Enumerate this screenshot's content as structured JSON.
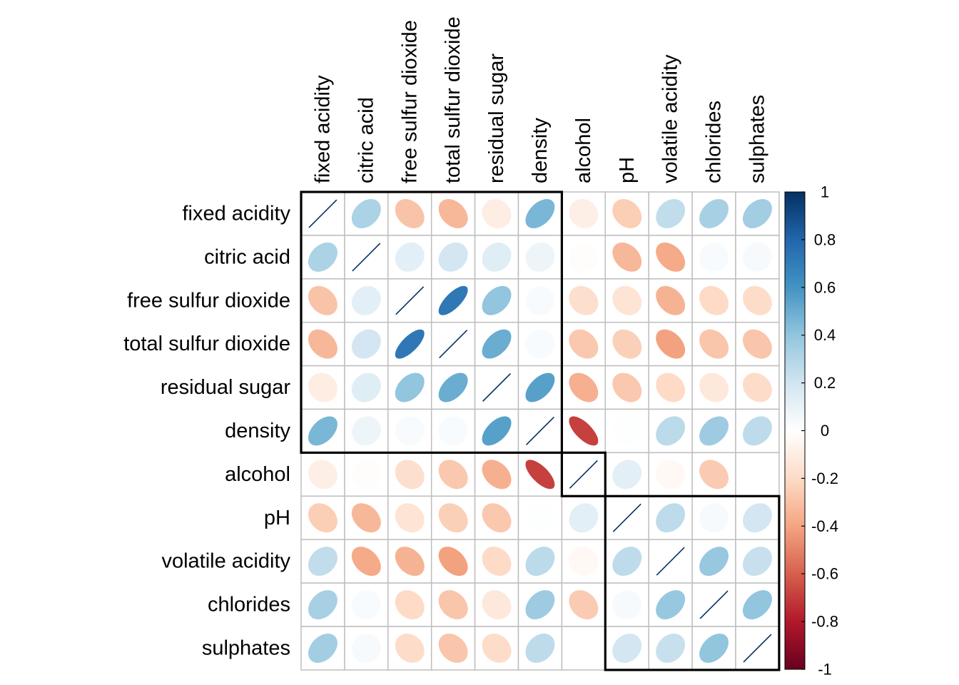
{
  "chart_data": {
    "type": "heatmap",
    "style": "ellipse",
    "variables": [
      "fixed acidity",
      "citric acid",
      "free sulfur dioxide",
      "total sulfur dioxide",
      "residual sugar",
      "density",
      "alcohol",
      "pH",
      "volatile acidity",
      "chlorides",
      "sulphates"
    ],
    "matrix": [
      [
        1.0,
        0.32,
        -0.29,
        -0.33,
        -0.1,
        0.46,
        -0.09,
        -0.25,
        0.25,
        0.33,
        0.35
      ],
      [
        0.32,
        1.0,
        0.12,
        0.19,
        0.14,
        0.08,
        -0.01,
        -0.33,
        -0.38,
        0.03,
        0.04
      ],
      [
        -0.29,
        0.12,
        1.0,
        0.72,
        0.4,
        0.03,
        -0.18,
        -0.15,
        -0.35,
        -0.2,
        -0.19
      ],
      [
        -0.33,
        0.19,
        0.72,
        1.0,
        0.5,
        0.03,
        -0.27,
        -0.24,
        -0.41,
        -0.28,
        -0.28
      ],
      [
        -0.1,
        0.14,
        0.4,
        0.5,
        1.0,
        0.55,
        -0.36,
        -0.27,
        -0.2,
        -0.13,
        -0.19
      ],
      [
        0.46,
        0.08,
        0.03,
        0.03,
        0.55,
        1.0,
        -0.69,
        0.01,
        0.27,
        0.36,
        0.26
      ],
      [
        -0.09,
        -0.01,
        -0.18,
        -0.27,
        -0.36,
        -0.69,
        1.0,
        0.12,
        -0.04,
        -0.26,
        0.0
      ],
      [
        -0.25,
        -0.33,
        -0.15,
        -0.24,
        -0.27,
        0.01,
        0.12,
        1.0,
        0.26,
        0.04,
        0.19
      ],
      [
        0.25,
        -0.38,
        -0.35,
        -0.41,
        -0.2,
        0.27,
        -0.04,
        0.26,
        1.0,
        0.38,
        0.23
      ],
      [
        0.33,
        0.03,
        -0.2,
        -0.28,
        -0.13,
        0.36,
        -0.26,
        0.04,
        0.38,
        1.0,
        0.4
      ],
      [
        0.35,
        0.04,
        -0.19,
        -0.28,
        -0.19,
        0.26,
        0.0,
        0.19,
        0.23,
        0.4,
        1.0
      ]
    ],
    "clusters": [
      [
        0,
        5
      ],
      [
        6,
        6
      ],
      [
        7,
        10
      ]
    ],
    "color_scale": {
      "min": -1,
      "max": 1,
      "ticks": [
        "1",
        "0.8",
        "0.6",
        "0.4",
        "0.2",
        "0",
        "-0.2",
        "-0.4",
        "-0.6",
        "-0.8",
        "-1"
      ],
      "stops": [
        "#67001F",
        "#B2182B",
        "#D6604D",
        "#F4A582",
        "#FDDBC7",
        "#FFFFFF",
        "#D1E5F0",
        "#92C5DE",
        "#4393C3",
        "#2166AC",
        "#053061"
      ]
    },
    "grid_color": "#BEBEBE",
    "diagonal_line_color": "#053061",
    "legend_position": "right"
  }
}
